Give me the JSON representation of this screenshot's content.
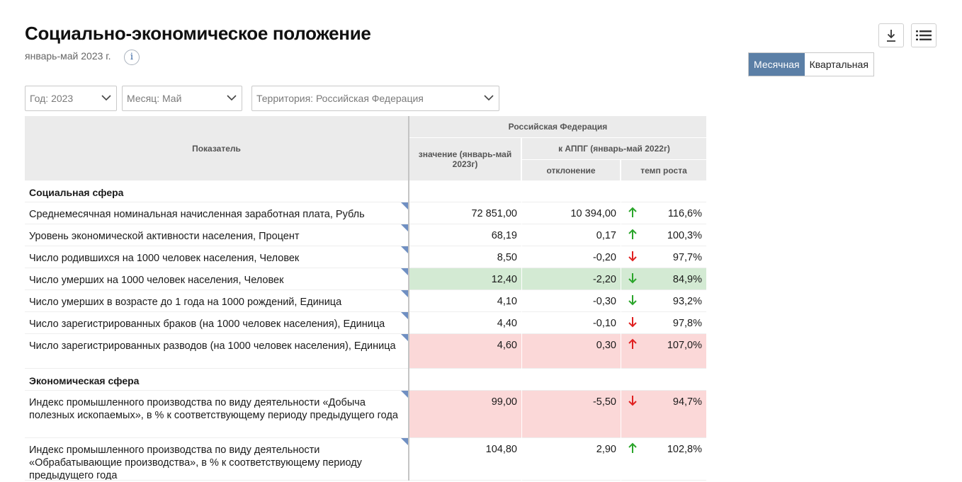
{
  "page": {
    "title": "Социально-экономическое положение",
    "subtitle": "январь-май 2023 г.",
    "info_glyph": "i"
  },
  "toolbar": {
    "download_icon": "download-icon",
    "list_icon": "list-icon"
  },
  "period_toggle": {
    "options": [
      "Месячная",
      "Квартальная"
    ],
    "active": "Месячная"
  },
  "filters": {
    "year": "Год: 2023",
    "month": "Месяц: Май",
    "territory": "Территория: Российская  Федерация"
  },
  "table": {
    "headers": {
      "indicator": "Показатель",
      "region": "Российская Федерация",
      "value": "значение (январь-май 2023г)",
      "appg": "к АППГ (январь-май 2022г)",
      "deviation": "отклонение",
      "growth_rate": "темп роста"
    },
    "colors": {
      "up_green": "#2aa52a",
      "down_red": "#e02020",
      "highlight_good": "#d3ead3",
      "highlight_bad": "#fbd8d8"
    },
    "rows": [
      {
        "type": "section",
        "name": "Социальная сфера"
      },
      {
        "type": "data",
        "name": "Среднемесячная номинальная начисленная заработная плата, Рубль",
        "value": "72 851,00",
        "deviation": "10 394,00",
        "arrow": "up",
        "arrow_color": "green",
        "rate": "116,6%",
        "highlight": "none"
      },
      {
        "type": "data",
        "name": "Уровень экономической активности населения, Процент",
        "value": "68,19",
        "deviation": "0,17",
        "arrow": "up",
        "arrow_color": "green",
        "rate": "100,3%",
        "highlight": "none"
      },
      {
        "type": "data",
        "name": "Число родившихся на 1000 человек населения, Человек",
        "value": "8,50",
        "deviation": "-0,20",
        "arrow": "down",
        "arrow_color": "red",
        "rate": "97,7%",
        "highlight": "none"
      },
      {
        "type": "data",
        "name": "Число умерших на 1000 человек населения, Человек",
        "value": "12,40",
        "deviation": "-2,20",
        "arrow": "down",
        "arrow_color": "green",
        "rate": "84,9%",
        "highlight": "good"
      },
      {
        "type": "data",
        "name": "Число умерших в возрасте до 1 года на 1000 рождений, Единица",
        "value": "4,10",
        "deviation": "-0,30",
        "arrow": "down",
        "arrow_color": "green",
        "rate": "93,2%",
        "highlight": "none"
      },
      {
        "type": "data",
        "name": "Число зарегистрированных браков (на 1000 человек населения), Единица",
        "value": "4,40",
        "deviation": "-0,10",
        "arrow": "down",
        "arrow_color": "red",
        "rate": "97,8%",
        "highlight": "none"
      },
      {
        "type": "data",
        "name": "Число зарегистрированных разводов (на 1000 человек населения), Единица",
        "value": "4,60",
        "deviation": "0,30",
        "arrow": "up",
        "arrow_color": "red",
        "rate": "107,0%",
        "highlight": "bad"
      },
      {
        "type": "section",
        "name": "Экономическая сфера"
      },
      {
        "type": "data",
        "name": "Индекс промышленного производства по виду деятельности «Добыча полезных ископаемых», в % к соответствующему периоду предыдущего года",
        "value": "99,00",
        "deviation": "-5,50",
        "arrow": "down",
        "arrow_color": "red",
        "rate": "94,7%",
        "highlight": "bad"
      },
      {
        "type": "data",
        "name": "Индекс промышленного производства по виду деятельности «Обрабатывающие производства», в % к соответствующему периоду предыдущего года",
        "value": "104,80",
        "deviation": "2,90",
        "arrow": "up",
        "arrow_color": "green",
        "rate": "102,8%",
        "highlight": "none"
      }
    ]
  }
}
